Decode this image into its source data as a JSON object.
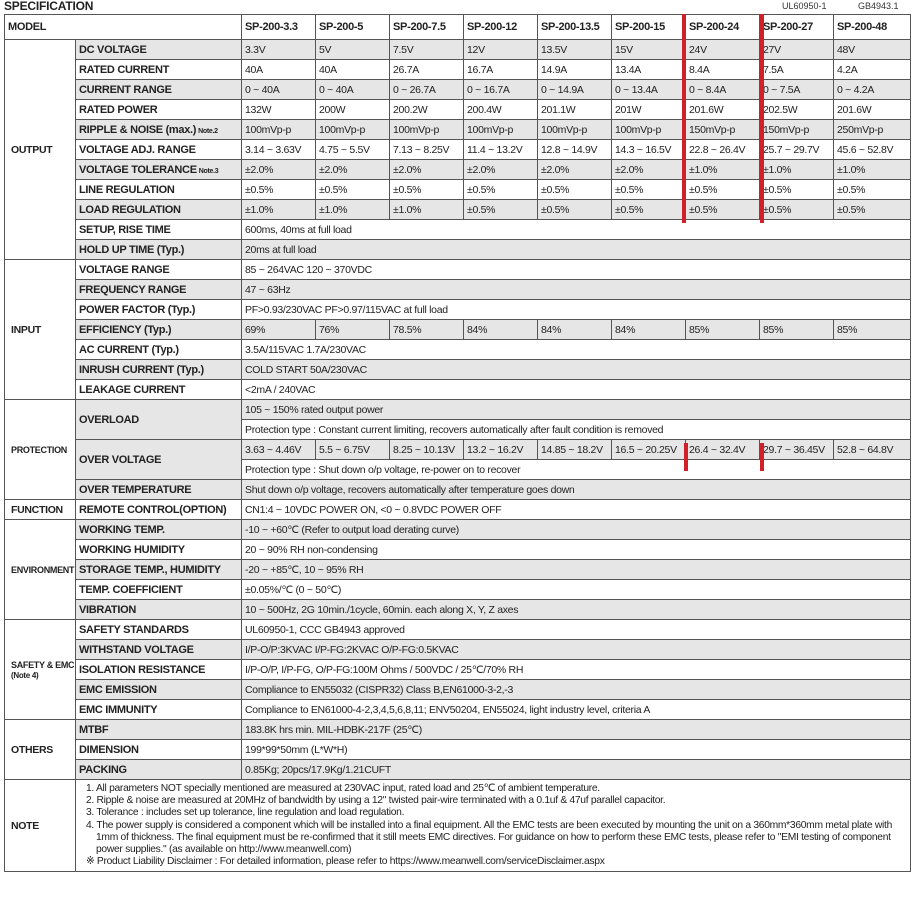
{
  "title": "SPECIFICATION",
  "certifications": [
    "UL60950-1",
    "GB4943.1"
  ],
  "header": {
    "label": "MODEL",
    "models": [
      "SP-200-3.3",
      "SP-200-5",
      "SP-200-7.5",
      "SP-200-12",
      "SP-200-13.5",
      "SP-200-15",
      "SP-200-24",
      "SP-200-27",
      "SP-200-48"
    ]
  },
  "highlight_color": "#d0202a",
  "sections": [
    {
      "name": "OUTPUT",
      "rows": [
        {
          "label": "DC VOLTAGE",
          "values": [
            "3.3V",
            "5V",
            "7.5V",
            "12V",
            "13.5V",
            "15V",
            "24V",
            "27V",
            "48V"
          ]
        },
        {
          "label": "RATED CURRENT",
          "values": [
            "40A",
            "40A",
            "26.7A",
            "16.7A",
            "14.9A",
            "13.4A",
            "8.4A",
            "7.5A",
            "4.2A"
          ]
        },
        {
          "label": "CURRENT RANGE",
          "values": [
            "0 ~ 40A",
            "0 ~ 40A",
            "0 ~ 26.7A",
            "0 ~ 16.7A",
            "0 ~ 14.9A",
            "0 ~ 13.4A",
            "0 ~ 8.4A",
            "0 ~ 7.5A",
            "0 ~ 4.2A"
          ]
        },
        {
          "label": "RATED POWER",
          "values": [
            "132W",
            "200W",
            "200.2W",
            "200.4W",
            "201.1W",
            "201W",
            "201.6W",
            "202.5W",
            "201.6W"
          ]
        },
        {
          "label": "RIPPLE & NOISE (max.)",
          "note": "Note.2",
          "values": [
            "100mVp-p",
            "100mVp-p",
            "100mVp-p",
            "100mVp-p",
            "100mVp-p",
            "100mVp-p",
            "150mVp-p",
            "150mVp-p",
            "250mVp-p"
          ]
        },
        {
          "label": "VOLTAGE ADJ. RANGE",
          "values": [
            "3.14 ~ 3.63V",
            "4.75 ~ 5.5V",
            "7.13 ~ 8.25V",
            "11.4 ~ 13.2V",
            "12.8 ~ 14.9V",
            "14.3 ~ 16.5V",
            "22.8 ~ 26.4V",
            "25.7 ~ 29.7V",
            "45.6 ~ 52.8V"
          ]
        },
        {
          "label": "VOLTAGE TOLERANCE",
          "note": "Note.3",
          "values": [
            "±2.0%",
            "±2.0%",
            "±2.0%",
            "±2.0%",
            "±2.0%",
            "±2.0%",
            "±1.0%",
            "±1.0%",
            "±1.0%"
          ]
        },
        {
          "label": "LINE REGULATION",
          "values": [
            "±0.5%",
            "±0.5%",
            "±0.5%",
            "±0.5%",
            "±0.5%",
            "±0.5%",
            "±0.5%",
            "±0.5%",
            "±0.5%"
          ]
        },
        {
          "label": "LOAD REGULATION",
          "values": [
            "±1.0%",
            "±1.0%",
            "±1.0%",
            "±0.5%",
            "±0.5%",
            "±0.5%",
            "±0.5%",
            "±0.5%",
            "±0.5%"
          ]
        },
        {
          "label": "SETUP, RISE TIME",
          "lines": [
            "600ms, 40ms at full load"
          ]
        },
        {
          "label": "HOLD UP TIME (Typ.)",
          "lines": [
            "20ms at full load"
          ]
        }
      ]
    },
    {
      "name": "INPUT",
      "rows": [
        {
          "label": "VOLTAGE RANGE",
          "lines": [
            "85 ~ 264VAC      120 ~ 370VDC"
          ]
        },
        {
          "label": "FREQUENCY RANGE",
          "lines": [
            "47 ~ 63Hz"
          ]
        },
        {
          "label": "POWER FACTOR (Typ.)",
          "lines": [
            "PF>0.93/230VAC      PF>0.97/115VAC at full load"
          ]
        },
        {
          "label": "EFFICIENCY (Typ.)",
          "values": [
            "69%",
            "76%",
            "78.5%",
            "84%",
            "84%",
            "84%",
            "85%",
            "85%",
            "85%"
          ]
        },
        {
          "label": "AC CURRENT (Typ.)",
          "lines": [
            "3.5A/115VAC      1.7A/230VAC"
          ]
        },
        {
          "label": "INRUSH CURRENT (Typ.)",
          "lines": [
            "COLD START 50A/230VAC"
          ]
        },
        {
          "label": "LEAKAGE CURRENT",
          "lines": [
            "<2mA / 240VAC"
          ]
        }
      ]
    },
    {
      "name": "PROTECTION",
      "rows": [
        {
          "label": "OVERLOAD",
          "lines": [
            "105 ~ 150% rated output power",
            "Protection type : Constant current limiting, recovers automatically after fault condition is removed"
          ]
        },
        {
          "label": "OVER VOLTAGE",
          "values": [
            "3.63 ~ 4.46V",
            "5.5 ~ 6.75V",
            "8.25 ~ 10.13V",
            "13.2 ~ 16.2V",
            "14.85 ~ 18.2V",
            "16.5 ~ 20.25V",
            "26.4 ~ 32.4V",
            "29.7 ~ 36.45V",
            "52.8 ~ 64.8V"
          ],
          "lines": [
            "Protection type : Shut down o/p voltage, re-power on to recover"
          ]
        },
        {
          "label": "OVER TEMPERATURE",
          "lines": [
            "Shut down o/p voltage, recovers automatically after temperature goes down"
          ]
        }
      ]
    },
    {
      "name": "FUNCTION",
      "rows": [
        {
          "label": "REMOTE CONTROL(OPTION)",
          "lines": [
            "CN1:4 ~ 10VDC POWER ON, <0 ~ 0.8VDC POWER OFF"
          ]
        }
      ]
    },
    {
      "name": "ENVIRONMENT",
      "rows": [
        {
          "label": "WORKING TEMP.",
          "lines": [
            "-10 ~ +60℃ (Refer to output load derating curve)"
          ]
        },
        {
          "label": "WORKING HUMIDITY",
          "lines": [
            "20 ~ 90% RH non-condensing"
          ]
        },
        {
          "label": "STORAGE TEMP., HUMIDITY",
          "lines": [
            "-20 ~ +85℃, 10 ~ 95% RH"
          ]
        },
        {
          "label": "TEMP. COEFFICIENT",
          "lines": [
            "±0.05%/℃ (0 ~ 50℃)"
          ]
        },
        {
          "label": "VIBRATION",
          "lines": [
            "10 ~ 500Hz, 2G 10min./1cycle, 60min. each along X, Y, Z axes"
          ]
        }
      ]
    },
    {
      "name": "SAFETY & EMC",
      "subname": "(Note 4)",
      "rows": [
        {
          "label": "SAFETY STANDARDS",
          "lines": [
            "UL60950-1, CCC GB4943 approved"
          ]
        },
        {
          "label": "WITHSTAND VOLTAGE",
          "lines": [
            "I/P-O/P:3KVAC    I/P-FG:2KVAC    O/P-FG:0.5KVAC"
          ]
        },
        {
          "label": "ISOLATION RESISTANCE",
          "lines": [
            "I/P-O/P, I/P-FG, O/P-FG:100M Ohms / 500VDC / 25℃/70% RH"
          ]
        },
        {
          "label": "EMC EMISSION",
          "lines": [
            "Compliance to EN55032 (CISPR32) Class B,EN61000-3-2,-3"
          ]
        },
        {
          "label": "EMC IMMUNITY",
          "lines": [
            "Compliance to EN61000-4-2,3,4,5,6,8,11; ENV50204, EN55024, light industry level,  criteria A"
          ]
        }
      ]
    },
    {
      "name": "OTHERS",
      "rows": [
        {
          "label": "MTBF",
          "lines": [
            "183.8K hrs min.    MIL-HDBK-217F (25℃)"
          ]
        },
        {
          "label": "DIMENSION",
          "lines": [
            "199*99*50mm (L*W*H)"
          ]
        },
        {
          "label": "PACKING",
          "lines": [
            "0.85Kg; 20pcs/17.9Kg/1.21CUFT"
          ]
        }
      ]
    }
  ],
  "note": {
    "name": "NOTE",
    "items": [
      "1. All parameters NOT specially mentioned are measured at 230VAC input, rated load and 25℃ of ambient temperature.",
      "2. Ripple & noise are measured at 20MHz of bandwidth by using a 12\" twisted pair-wire terminated with a 0.1uf & 47uf parallel capacitor.",
      "3. Tolerance : includes set up tolerance, line regulation and load regulation.",
      "4. The power supply is considered a component which will be installed into a final equipment. All the EMC tests are been executed by mounting the unit on a 360mm*360mm metal plate with 1mm of thickness. The final equipment must be re-confirmed that it still meets EMC directives. For guidance on how to perform these EMC tests, please refer to \"EMI testing of component power supplies.\" (as available on http://www.meanwell.com)",
      "※ Product Liability Disclaimer : For detailed information, please refer to https://www.meanwell.com/serviceDisclaimer.aspx"
    ]
  }
}
